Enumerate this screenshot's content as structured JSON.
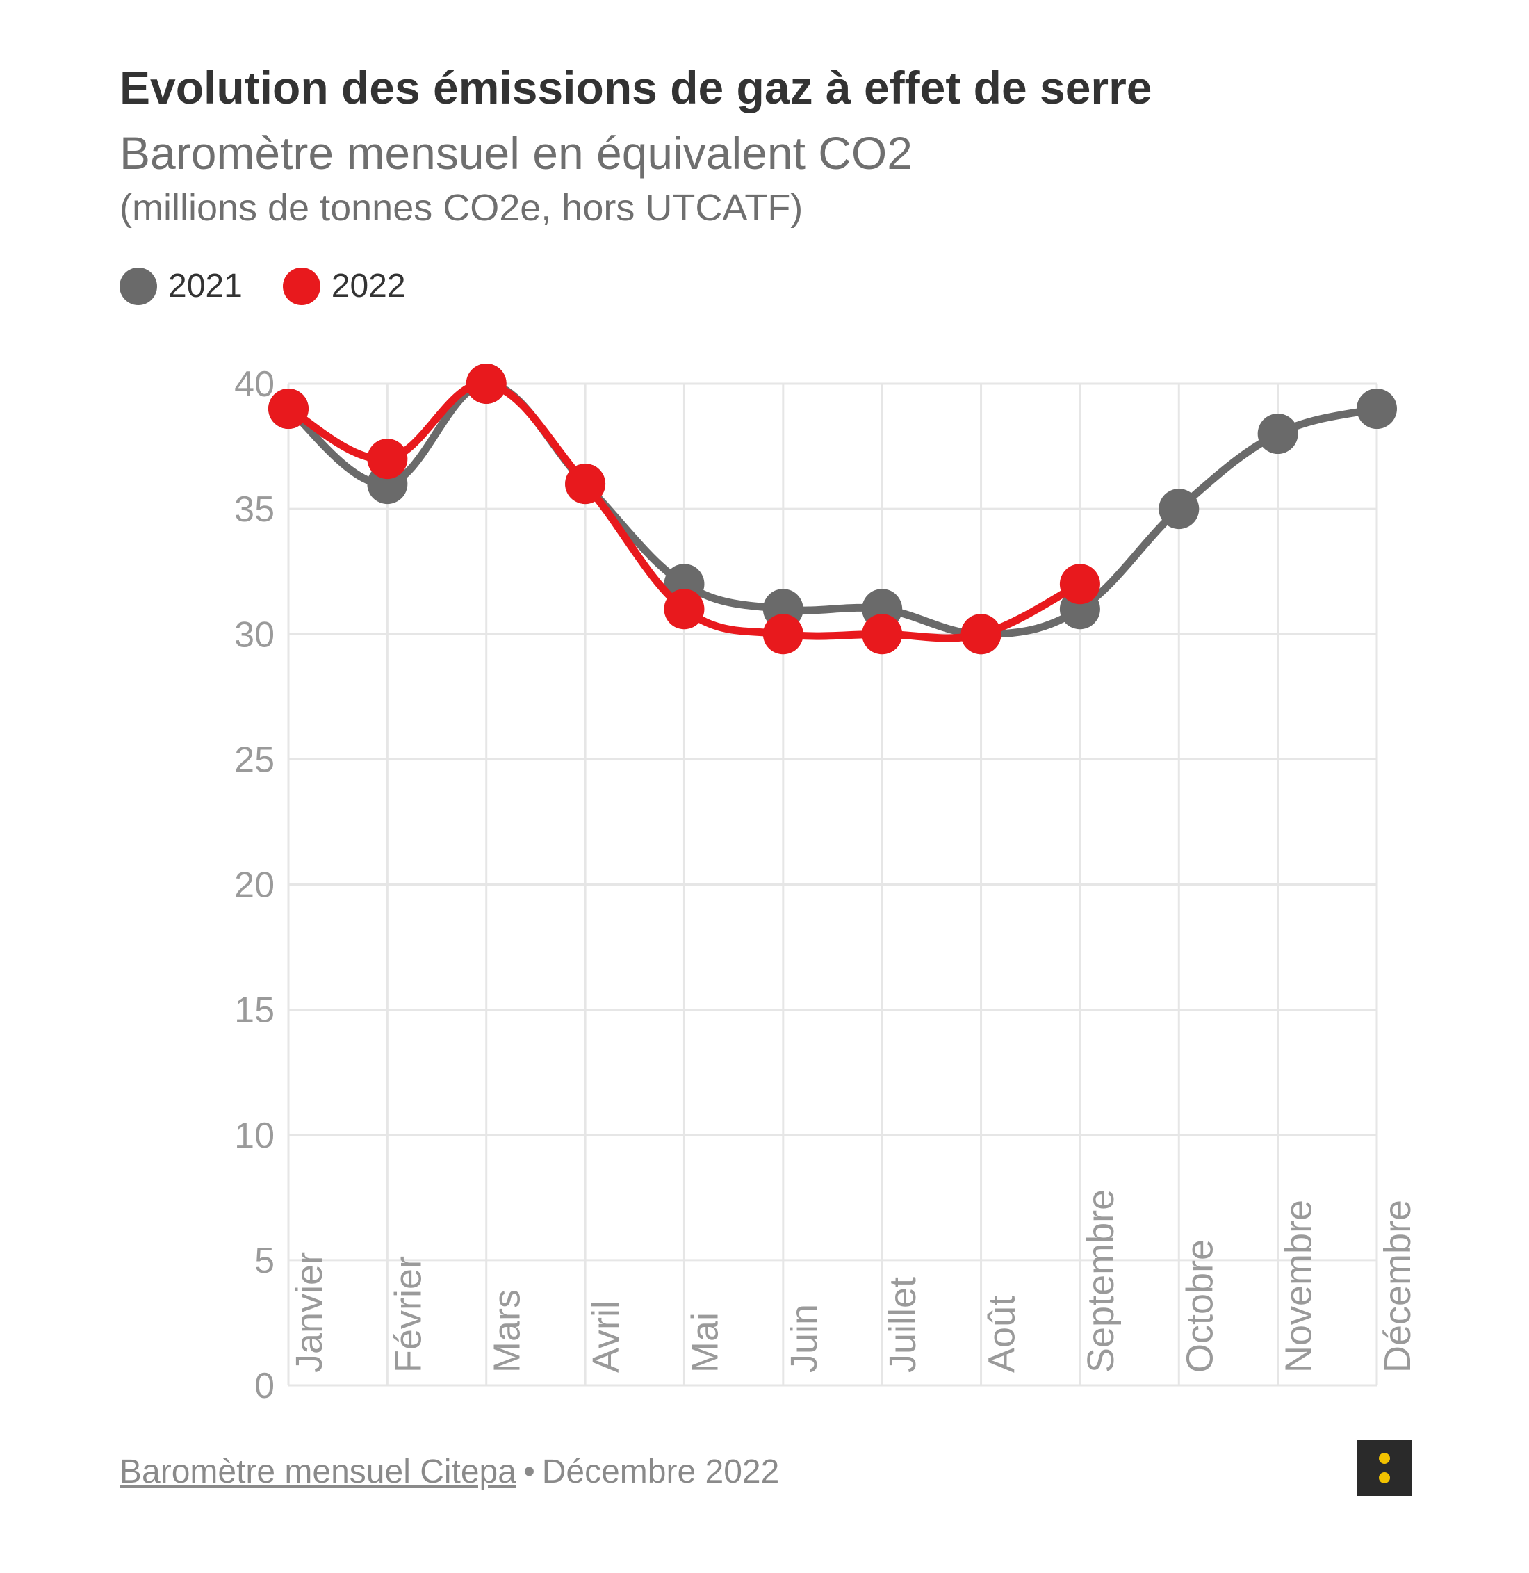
{
  "header": {
    "title": "Evolution des émissions de gaz à effet de serre",
    "subtitle": "Baromètre mensuel en équivalent CO2",
    "unit": "(millions de tonnes CO2e, hors UTCATF)"
  },
  "legend": [
    {
      "label": "2021",
      "color": "#6a6a6a"
    },
    {
      "label": "2022",
      "color": "#e8191d"
    }
  ],
  "footer": {
    "source_link": "Baromètre mensuel Citepa",
    "separator": "•",
    "date": "Décembre 2022"
  },
  "chart_data": {
    "type": "line",
    "title": "Evolution des émissions de gaz à effet de serre",
    "subtitle": "Baromètre mensuel en équivalent CO2",
    "xlabel": "",
    "ylabel": "",
    "categories": [
      "Janvier",
      "Février",
      "Mars",
      "Avril",
      "Mai",
      "Juin",
      "Juillet",
      "Août",
      "Septembre",
      "Octobre",
      "Novembre",
      "Décembre"
    ],
    "ylim": [
      0,
      40
    ],
    "yticks": [
      0,
      5,
      10,
      15,
      20,
      25,
      30,
      35,
      40
    ],
    "grid": true,
    "legend_position": "top-left",
    "series": [
      {
        "name": "2021",
        "color": "#6a6a6a",
        "values": [
          39,
          36,
          40,
          36,
          32,
          31,
          31,
          30,
          31,
          35,
          38,
          39
        ]
      },
      {
        "name": "2022",
        "color": "#e8191d",
        "values": [
          39,
          37,
          40,
          36,
          31,
          30,
          30,
          30,
          32,
          null,
          null,
          null
        ]
      }
    ]
  }
}
